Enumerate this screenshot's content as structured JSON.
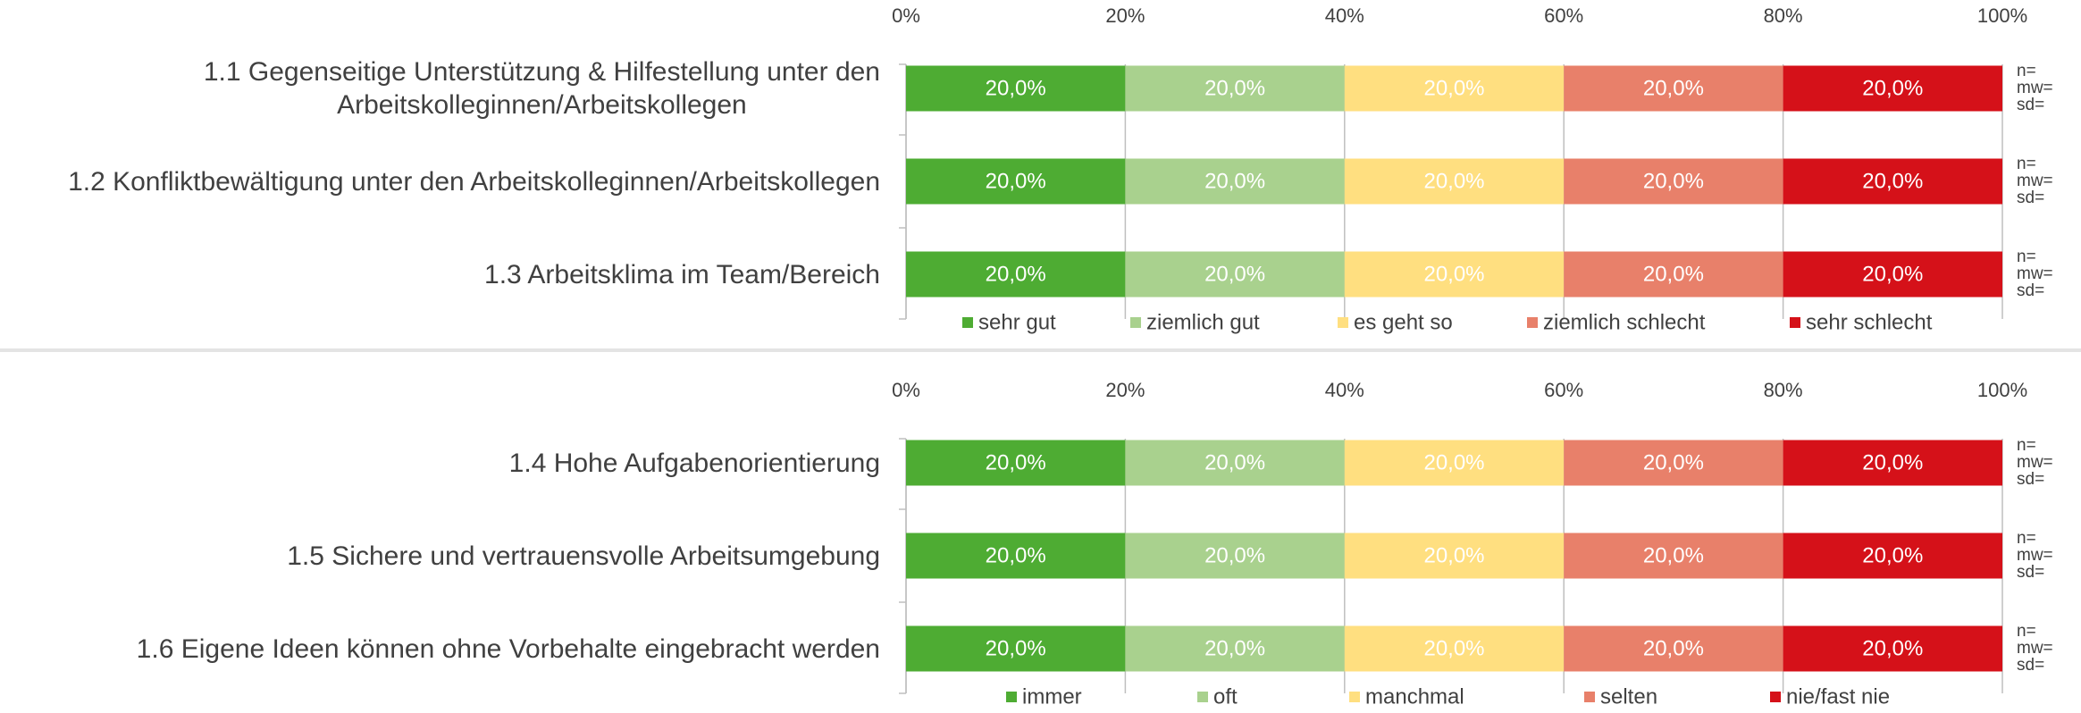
{
  "chart_data": [
    {
      "type": "bar",
      "orientation": "horizontal",
      "stacked": true,
      "categories": [
        "1.1 Gegenseitige Unterstützung & Hilfestellung unter den\nArbeitskolleginnen/Arbeitskollegen",
        "1.2 Konfliktbewältigung unter den Arbeitskolleginnen/Arbeitskollegen",
        "1.3 Arbeitsklima im Team/Bereich"
      ],
      "series": [
        {
          "name": "sehr gut",
          "color": "#4eac33",
          "values": [
            20,
            20,
            20
          ],
          "value_labels": [
            "20,0%",
            "20,0%",
            "20,0%"
          ]
        },
        {
          "name": "ziemlich gut",
          "color": "#a9d18e",
          "values": [
            20,
            20,
            20
          ],
          "value_labels": [
            "20,0%",
            "20,0%",
            "20,0%"
          ]
        },
        {
          "name": "es geht so",
          "color": "#ffdf80",
          "values": [
            20,
            20,
            20
          ],
          "value_labels": [
            "20,0%",
            "20,0%",
            "20,0%"
          ]
        },
        {
          "name": "ziemlich schlecht",
          "color": "#e8806a",
          "values": [
            20,
            20,
            20
          ],
          "value_labels": [
            "20,0%",
            "20,0%",
            "20,0%"
          ]
        },
        {
          "name": "sehr schlecht",
          "color": "#d51119",
          "values": [
            20,
            20,
            20
          ],
          "value_labels": [
            "20,0%",
            "20,0%",
            "20,0%"
          ]
        }
      ],
      "xlim": [
        0,
        100
      ],
      "xticks": [
        {
          "value": 0,
          "label": "0%"
        },
        {
          "value": 20,
          "label": "20%"
        },
        {
          "value": 40,
          "label": "40%"
        },
        {
          "value": 60,
          "label": "60%"
        },
        {
          "value": 80,
          "label": "80%"
        },
        {
          "value": 100,
          "label": "100%"
        }
      ],
      "grid": true,
      "legend": "bottom",
      "row_notes": [
        [
          "n=",
          "mw=",
          "sd="
        ],
        [
          "n=",
          "mw=",
          "sd="
        ],
        [
          "n=",
          "mw=",
          "sd="
        ]
      ]
    },
    {
      "type": "bar",
      "orientation": "horizontal",
      "stacked": true,
      "categories": [
        "1.4 Hohe Aufgabenorientierung",
        "1.5 Sichere und vertrauensvolle Arbeitsumgebung",
        "1.6 Eigene Ideen können ohne Vorbehalte eingebracht werden"
      ],
      "series": [
        {
          "name": "immer",
          "color": "#4eac33",
          "values": [
            20,
            20,
            20
          ],
          "value_labels": [
            "20,0%",
            "20,0%",
            "20,0%"
          ]
        },
        {
          "name": "oft",
          "color": "#a9d18e",
          "values": [
            20,
            20,
            20
          ],
          "value_labels": [
            "20,0%",
            "20,0%",
            "20,0%"
          ]
        },
        {
          "name": "manchmal",
          "color": "#ffdf80",
          "values": [
            20,
            20,
            20
          ],
          "value_labels": [
            "20,0%",
            "20,0%",
            "20,0%"
          ]
        },
        {
          "name": "selten",
          "color": "#e8806a",
          "values": [
            20,
            20,
            20
          ],
          "value_labels": [
            "20,0%",
            "20,0%",
            "20,0%"
          ]
        },
        {
          "name": "nie/fast nie",
          "color": "#d51119",
          "values": [
            20,
            20,
            20
          ],
          "value_labels": [
            "20,0%",
            "20,0%",
            "20,0%"
          ]
        }
      ],
      "xlim": [
        0,
        100
      ],
      "xticks": [
        {
          "value": 0,
          "label": "0%"
        },
        {
          "value": 20,
          "label": "20%"
        },
        {
          "value": 40,
          "label": "40%"
        },
        {
          "value": 60,
          "label": "60%"
        },
        {
          "value": 80,
          "label": "80%"
        },
        {
          "value": 100,
          "label": "100%"
        }
      ],
      "grid": true,
      "legend": "bottom",
      "row_notes": [
        [
          "n=",
          "mw=",
          "sd="
        ],
        [
          "n=",
          "mw=",
          "sd="
        ],
        [
          "n=",
          "mw=",
          "sd="
        ]
      ]
    }
  ]
}
